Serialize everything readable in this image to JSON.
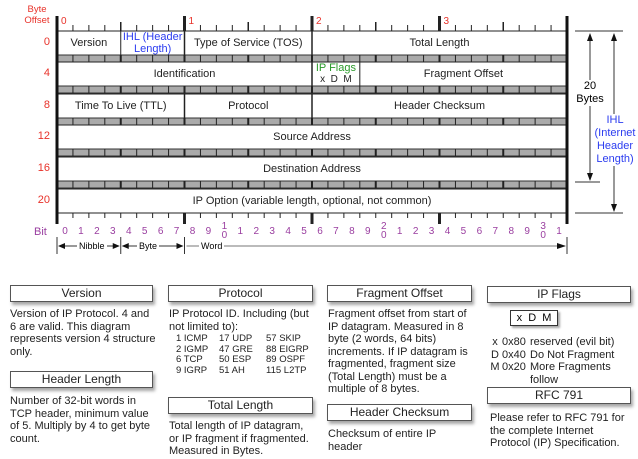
{
  "header": {
    "byte_offset_label": "Byte\nOffset",
    "byte_numbers": [
      "0",
      "1",
      "2",
      "3"
    ],
    "bit_label": "Bit"
  },
  "row_offsets": [
    "0",
    "4",
    "8",
    "12",
    "16",
    "20"
  ],
  "rows": [
    [
      {
        "label": "Version",
        "from": 0,
        "to": 4
      },
      {
        "label": "IHL (Header Length)",
        "from": 4,
        "to": 8,
        "color": "#2b3cf0"
      },
      {
        "label": "Type of Service (TOS)",
        "from": 8,
        "to": 16
      },
      {
        "label": "Total Length",
        "from": 16,
        "to": 32
      }
    ],
    [
      {
        "label": "Identification",
        "from": 0,
        "to": 16
      },
      {
        "label": "IP Flags",
        "sub": "x  D  M",
        "from": 16,
        "to": 19,
        "color": "#2a9a2a"
      },
      {
        "label": "Fragment Offset",
        "from": 19,
        "to": 32
      }
    ],
    [
      {
        "label": "Time To Live (TTL)",
        "from": 0,
        "to": 8
      },
      {
        "label": "Protocol",
        "from": 8,
        "to": 16
      },
      {
        "label": "Header Checksum",
        "from": 16,
        "to": 32
      }
    ],
    [
      {
        "label": "Source Address",
        "from": 0,
        "to": 32
      }
    ],
    [
      {
        "label": "Destination Address",
        "from": 0,
        "to": 32
      }
    ],
    [
      {
        "label": "IP Option (variable length, optional, not common)",
        "from": 0,
        "to": 32
      }
    ]
  ],
  "bits": [
    "0",
    "1",
    "2",
    "3",
    "4",
    "5",
    "6",
    "7",
    "8",
    "9",
    "10",
    "1",
    "2",
    "3",
    "4",
    "5",
    "6",
    "7",
    "8",
    "9",
    "20",
    "1",
    "2",
    "3",
    "4",
    "5",
    "6",
    "7",
    "8",
    "9",
    "30",
    "1"
  ],
  "spans": {
    "nibble": "Nibble",
    "byte": "Byte",
    "word": "Word"
  },
  "side": {
    "twenty_bytes": "20\nBytes",
    "ihl": "IHL\n(Internet\nHeader\nLength)"
  },
  "legend": {
    "version": {
      "title": "Version",
      "text": "Version of IP Protocol.  4 and 6 are valid.  This diagram represents version 4 structure only."
    },
    "header_length": {
      "title": "Header Length",
      "text": "Number of 32-bit words in TCP header, minimum value of 5.  Multiply by 4 to get byte count."
    },
    "protocol": {
      "title": "Protocol",
      "text": "IP Protocol ID.  Including (but not limited to):",
      "ids": [
        [
          "1 ICMP",
          "17 UDP",
          "57 SKIP"
        ],
        [
          "2 IGMP",
          "47 GRE",
          "88 EIGRP"
        ],
        [
          "6 TCP",
          "50 ESP",
          "89 OSPF"
        ],
        [
          "9 IGRP",
          "51 AH",
          "115 L2TP"
        ]
      ]
    },
    "total_length": {
      "title": "Total Length",
      "text": "Total length of IP datagram, or IP fragment if fragmented. Measured in Bytes."
    },
    "fragment_offset": {
      "title": "Fragment Offset",
      "text": "Fragment offset from start of IP datagram.  Measured in 8 byte (2 words, 64 bits) increments.  If IP datagram is fragmented, fragment size (Total Length) must be a multiple of 8 bytes."
    },
    "header_checksum": {
      "title": "Header Checksum",
      "text": "Checksum of entire IP header"
    },
    "ip_flags": {
      "title": "IP Flags",
      "flags_box": "x  D  M",
      "items": [
        [
          "x",
          "0x80",
          "reserved (evil bit)"
        ],
        [
          "D",
          "0x40",
          "Do Not Fragment"
        ],
        [
          "M",
          "0x20",
          "More Fragments follow"
        ]
      ]
    },
    "rfc": {
      "title": "RFC 791",
      "text": "Please refer to RFC 791 for the complete Internet Protocol (IP) Specification."
    }
  },
  "colors": {
    "offset": "#e8322a",
    "bits": "#9a3ea0",
    "ihl": "#2b3cf0",
    "flags": "#2a9a2a"
  }
}
